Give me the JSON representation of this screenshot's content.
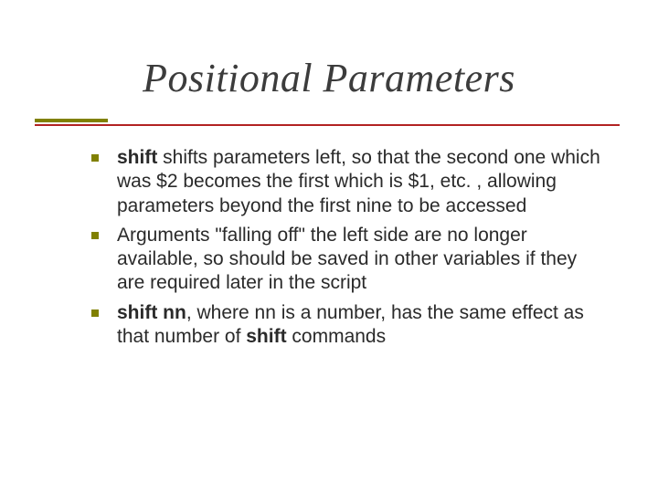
{
  "title": "Positional Parameters",
  "colors": {
    "bullet": "#808000",
    "underline_top": "#808000",
    "underline_bottom": "#b22222",
    "title_text": "#3c3c3c",
    "body_text": "#2a2a2a",
    "background": "#ffffff"
  },
  "typography": {
    "title_font": "Times New Roman",
    "title_fontsize_pt": 33,
    "title_italic": true,
    "body_font": "Verdana",
    "body_fontsize_pt": 16
  },
  "bullets": [
    {
      "bold_lead": "shift",
      "text": " shifts parameters left, so that the second one which was $2 becomes the first which is $1, etc. , allowing parameters beyond the first nine to be accessed"
    },
    {
      "bold_lead": "",
      "text": "Arguments \"falling off\" the left side are no longer available, so should be saved in other variables if they are required later in the script"
    },
    {
      "bold_lead": "shift nn",
      "mid": ", where nn is a number, has the same effect as that number of ",
      "bold_tail": "shift",
      "tail": " commands"
    }
  ]
}
